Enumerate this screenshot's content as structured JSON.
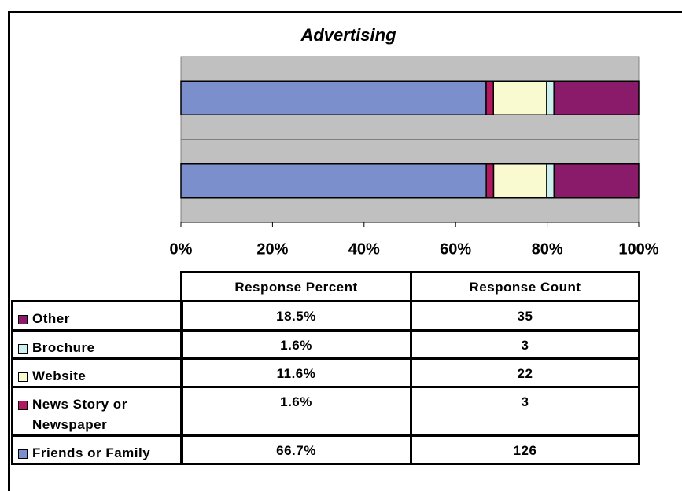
{
  "chart_data": {
    "type": "bar",
    "orientation": "horizontal",
    "stacking": "percent",
    "title": "Advertising",
    "categories": [
      "Response Percent",
      "Response Count"
    ],
    "series": [
      {
        "name": "Friends or Family",
        "color": "#7b8fcc",
        "values": [
          66.7,
          126
        ],
        "value_labels": [
          "66.7%",
          "126"
        ]
      },
      {
        "name": "News Story or Newspaper",
        "color": "#b3185f",
        "values": [
          1.6,
          3
        ],
        "value_labels": [
          "1.6%",
          "3"
        ]
      },
      {
        "name": "Website",
        "color": "#fafad0",
        "values": [
          11.6,
          22
        ],
        "value_labels": [
          "11.6%",
          "22"
        ]
      },
      {
        "name": "Brochure",
        "color": "#ccf0f0",
        "values": [
          1.6,
          3
        ],
        "value_labels": [
          "1.6%",
          "3"
        ]
      },
      {
        "name": "Other",
        "color": "#8a1a6a",
        "values": [
          18.5,
          35
        ],
        "value_labels": [
          "18.5%",
          "35"
        ]
      }
    ],
    "xlim": [
      0,
      100
    ],
    "xticks": [
      {
        "value": 0,
        "label": "0%"
      },
      {
        "value": 20,
        "label": "20%"
      },
      {
        "value": 40,
        "label": "40%"
      },
      {
        "value": 60,
        "label": "60%"
      },
      {
        "value": 80,
        "label": "80%"
      },
      {
        "value": 100,
        "label": "100%"
      }
    ]
  }
}
